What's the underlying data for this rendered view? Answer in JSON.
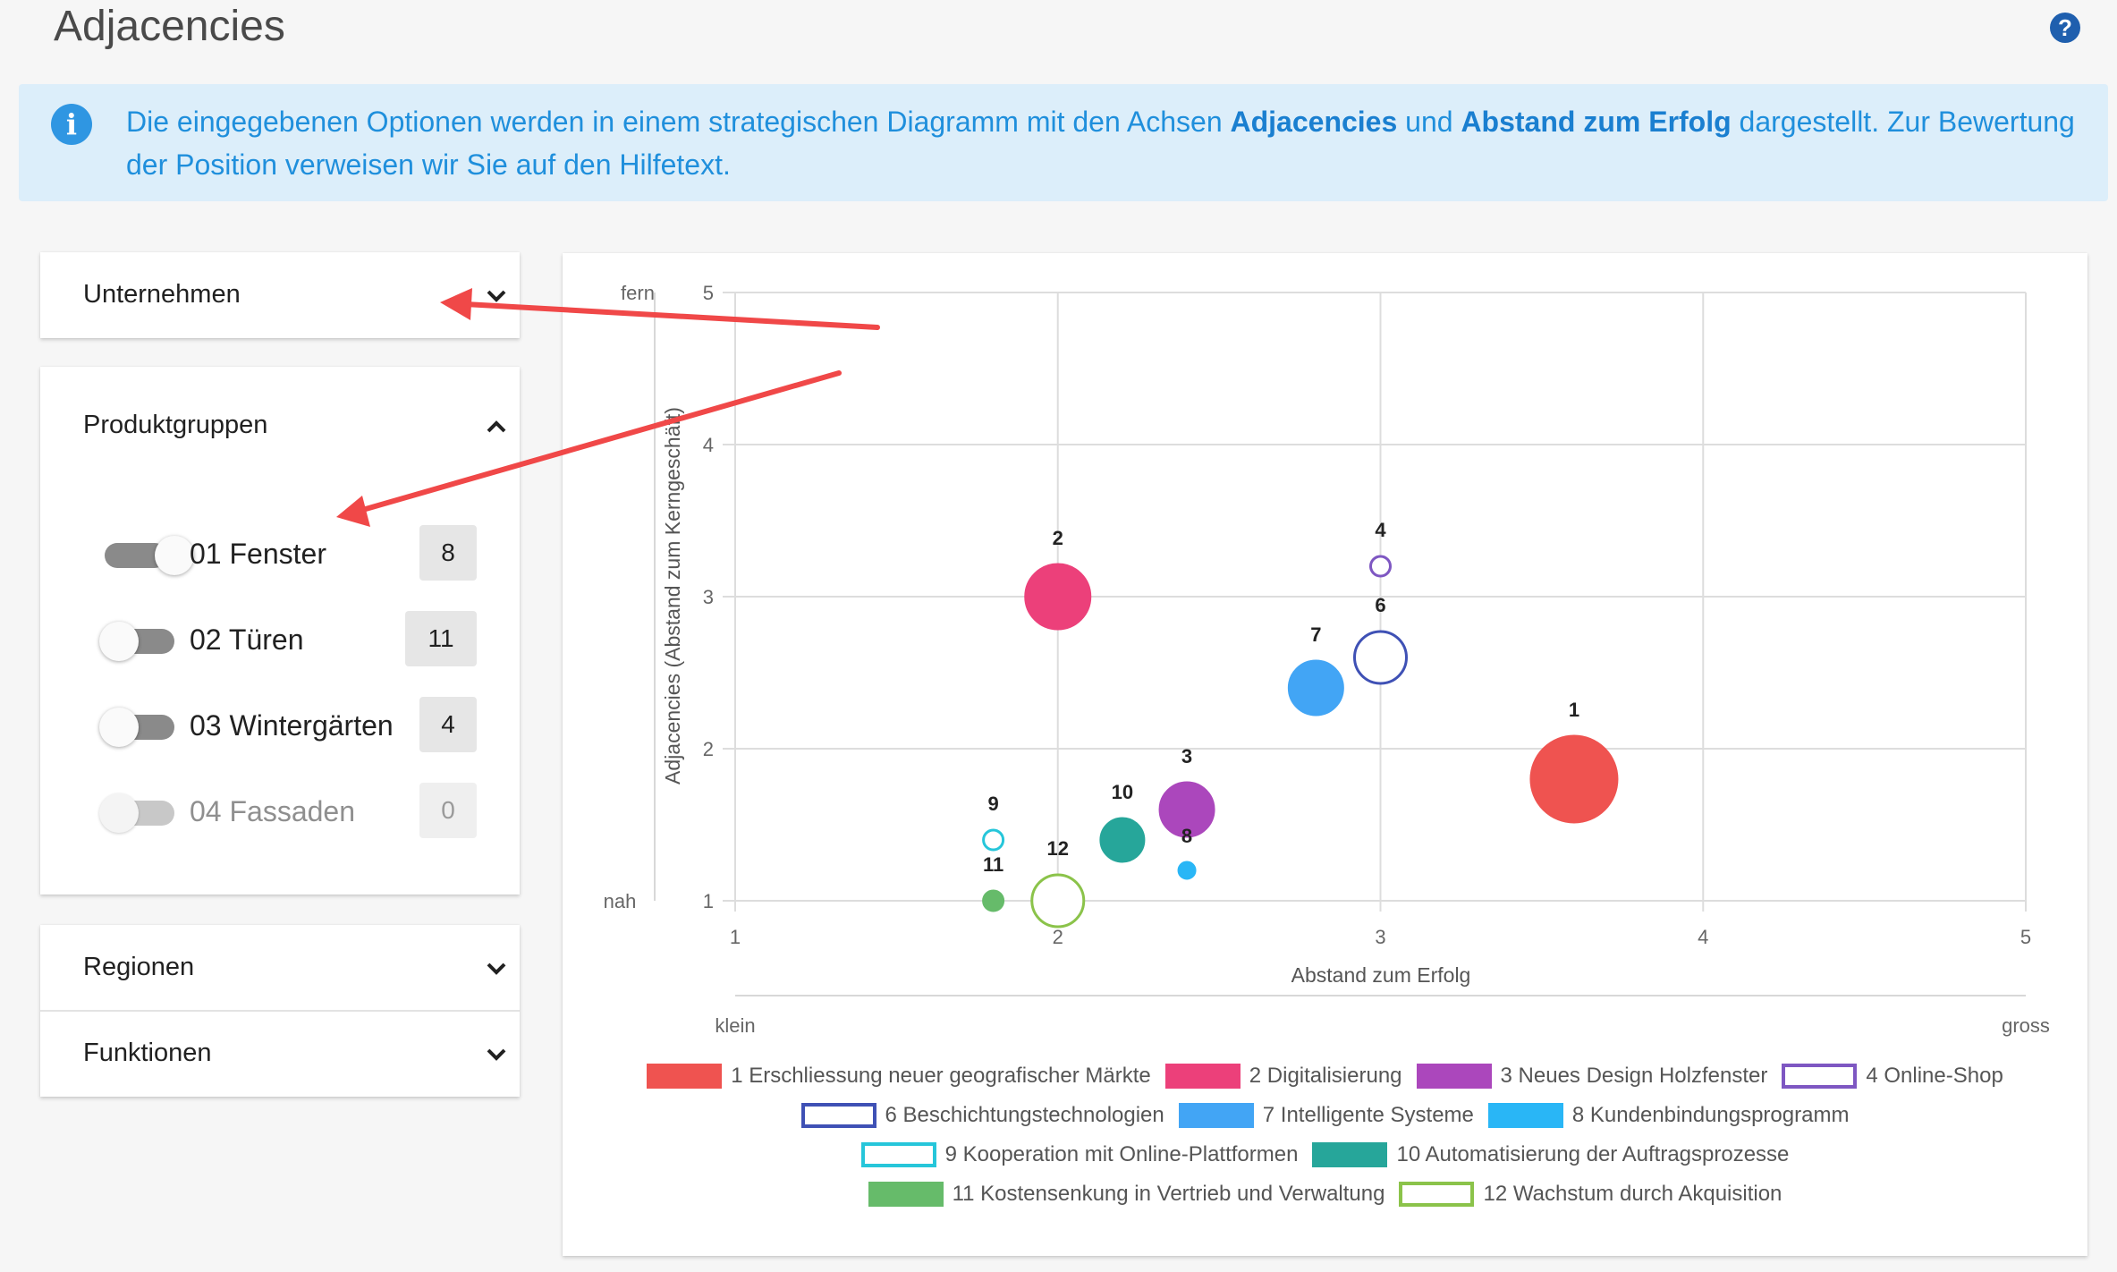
{
  "page": {
    "title": "Adjacencies"
  },
  "info": {
    "part1": "Die eingegebenen Optionen werden in einem strategischen Diagramm mit den Achsen ",
    "bold1": "Adjacencies",
    "part2": " und ",
    "bold2": "Abstand zum Erfolg",
    "part3": " dargestellt. Zur Bewertung der Position verweisen wir Sie auf den Hilfetext."
  },
  "help": {
    "label": "?"
  },
  "panels": {
    "unternehmen": {
      "label": "Unternehmen"
    },
    "produktgruppen": {
      "label": "Produktgruppen",
      "items": [
        {
          "label": "01 Fenster",
          "count": "8",
          "on": true,
          "disabled": false
        },
        {
          "label": "02 Türen",
          "count": "11",
          "on": false,
          "disabled": false
        },
        {
          "label": "03 Wintergärten",
          "count": "4",
          "on": false,
          "disabled": false
        },
        {
          "label": "04 Fassaden",
          "count": "0",
          "on": false,
          "disabled": true
        }
      ]
    },
    "regionen": {
      "label": "Regionen"
    },
    "funktionen": {
      "label": "Funktionen"
    }
  },
  "chart_data": {
    "type": "bubble",
    "xlabel": "Abstand zum Erfolg",
    "ylabel": "Adjacencies (Abstand zum Kerngeschäft)",
    "xlim": [
      1,
      5
    ],
    "ylim": [
      1,
      5
    ],
    "x_ticks": [
      "1",
      "2",
      "3",
      "4",
      "5"
    ],
    "y_ticks": [
      "1",
      "2",
      "3",
      "4",
      "5"
    ],
    "x_end_labels": {
      "low": "klein",
      "high": "gross"
    },
    "y_end_labels": {
      "low": "nah",
      "high": "fern"
    },
    "grid": true,
    "legend_position": "bottom",
    "series": [
      {
        "id": "1",
        "name": "1 Erschliessung neuer geografischer Märkte",
        "x": 3.6,
        "y": 1.8,
        "size": 48,
        "color": "#ef5350",
        "filled": true
      },
      {
        "id": "2",
        "name": "2 Digitalisierung",
        "x": 2.0,
        "y": 3.0,
        "size": 36,
        "color": "#ec407a",
        "filled": true
      },
      {
        "id": "3",
        "name": "3 Neues Design Holzfenster",
        "x": 2.4,
        "y": 1.6,
        "size": 30,
        "color": "#ab47bc",
        "filled": true
      },
      {
        "id": "4",
        "name": "4 Online-Shop",
        "x": 3.0,
        "y": 3.2,
        "size": 11,
        "color": "#7e57c2",
        "filled": false
      },
      {
        "id": "6",
        "name": "6 Beschichtungstechnologien",
        "x": 3.0,
        "y": 2.6,
        "size": 29,
        "color": "#3f51b5",
        "filled": false
      },
      {
        "id": "7",
        "name": "7 Intelligente Systeme",
        "x": 2.8,
        "y": 2.4,
        "size": 30,
        "color": "#42a5f5",
        "filled": true
      },
      {
        "id": "8",
        "name": "8 Kundenbindungsprogramm",
        "x": 2.4,
        "y": 1.2,
        "size": 9,
        "color": "#29b6f6",
        "filled": true
      },
      {
        "id": "9",
        "name": "9 Kooperation mit Online-Plattformen",
        "x": 1.8,
        "y": 1.4,
        "size": 11,
        "color": "#26c6da",
        "filled": false
      },
      {
        "id": "10",
        "name": "10 Automatisierung der Auftragsprozesse",
        "x": 2.2,
        "y": 1.4,
        "size": 24,
        "color": "#26a69a",
        "filled": true
      },
      {
        "id": "11",
        "name": "11 Kostensenkung in Vertrieb und Verwaltung",
        "x": 1.8,
        "y": 1.0,
        "size": 11,
        "color": "#66bb6a",
        "filled": true
      },
      {
        "id": "12",
        "name": "12 Wachstum durch Akquisition",
        "x": 2.0,
        "y": 1.0,
        "size": 29,
        "color": "#8bc34a",
        "filled": false
      }
    ],
    "legend_rows": [
      [
        0,
        1,
        2,
        3
      ],
      [
        4,
        5,
        6
      ],
      [
        7,
        8
      ],
      [
        9,
        10
      ]
    ]
  }
}
